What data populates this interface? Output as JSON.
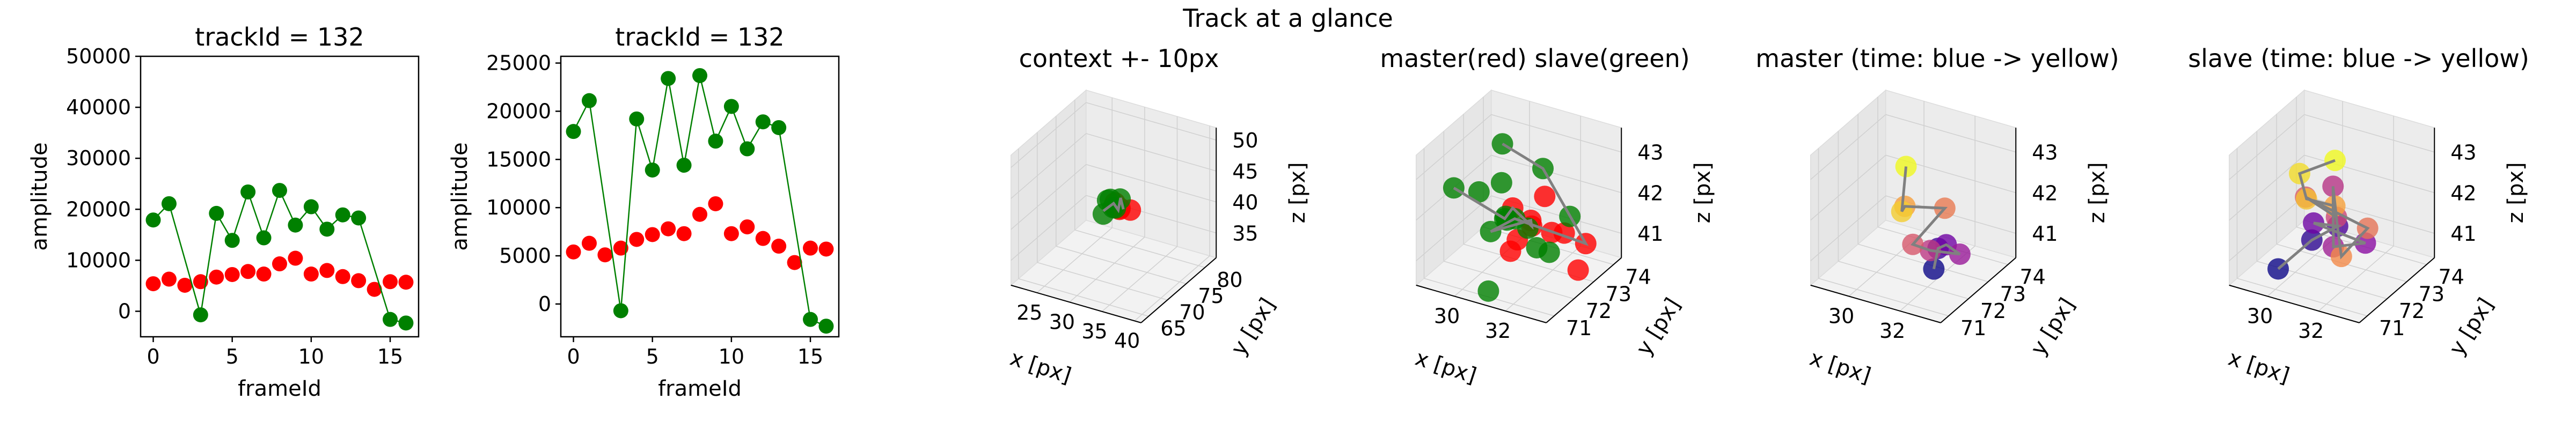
{
  "figure": {
    "suptitle": "Track at a glance"
  },
  "chart_data": [
    {
      "type": "scatter",
      "title": "trackId = 132",
      "xlabel": "frameId",
      "ylabel": "amplitude",
      "xlim": [
        -0.8,
        16.8
      ],
      "ylim": [
        -5000,
        50000
      ],
      "xticks": [
        0,
        5,
        10,
        15
      ],
      "yticks": [
        0,
        10000,
        20000,
        30000,
        40000,
        50000
      ],
      "grid": false,
      "series": [
        {
          "color": "#ff0000",
          "connected": false,
          "x": [
            0,
            1,
            2,
            3,
            4,
            5,
            6,
            7,
            8,
            9,
            10,
            11,
            12,
            13,
            14,
            15,
            16
          ],
          "y": [
            5400,
            6300,
            5100,
            5800,
            6700,
            7200,
            7800,
            7300,
            9300,
            10400,
            7300,
            8000,
            6800,
            6000,
            4300,
            5800,
            5700
          ]
        },
        {
          "color": "#008000",
          "connected": true,
          "x": [
            0,
            1,
            3,
            4,
            5,
            6,
            7,
            8,
            9,
            10,
            11,
            12,
            13,
            15,
            16
          ],
          "y": [
            17900,
            21100,
            -700,
            19200,
            13900,
            23400,
            14400,
            23700,
            16900,
            20500,
            16100,
            18900,
            18300,
            -1600,
            -2300
          ]
        }
      ]
    },
    {
      "type": "scatter",
      "title": "trackId = 132",
      "xlabel": "frameId",
      "ylabel": "amplitude",
      "xlim": [
        -0.8,
        16.8
      ],
      "ylim": [
        -3400,
        25700
      ],
      "xticks": [
        0,
        5,
        10,
        15
      ],
      "yticks": [
        0,
        5000,
        10000,
        15000,
        20000,
        25000
      ],
      "grid": false,
      "series": [
        {
          "color": "#ff0000",
          "connected": false,
          "x": [
            0,
            1,
            2,
            3,
            4,
            5,
            6,
            7,
            8,
            9,
            10,
            11,
            12,
            13,
            14,
            15,
            16
          ],
          "y": [
            5400,
            6300,
            5100,
            5800,
            6700,
            7200,
            7800,
            7300,
            9300,
            10400,
            7300,
            8000,
            6800,
            6000,
            4300,
            5800,
            5700
          ]
        },
        {
          "color": "#008000",
          "connected": true,
          "x": [
            0,
            1,
            3,
            4,
            5,
            6,
            7,
            8,
            9,
            10,
            11,
            12,
            13,
            15,
            16
          ],
          "y": [
            17900,
            21100,
            -700,
            19200,
            13900,
            23400,
            14400,
            23700,
            16900,
            20500,
            16100,
            18900,
            18300,
            -1600,
            -2300
          ]
        }
      ]
    },
    {
      "type": "scatter",
      "projection": "3d",
      "title": "context +- 10px",
      "xlabel": "x [px]",
      "ylabel": "y [px]",
      "zlabel": "z [px]",
      "xlim": [
        21,
        41
      ],
      "ylim": [
        63,
        83
      ],
      "zlim": [
        31,
        52
      ],
      "xticks": [
        25,
        30,
        35,
        40
      ],
      "yticks": [
        65,
        70,
        75,
        80
      ],
      "zticks": [
        35,
        40,
        45,
        50
      ],
      "series": [
        {
          "color": "#ff0000",
          "x": [
            32,
            32.5,
            33,
            31.5
          ],
          "y": [
            73,
            72,
            74,
            72.5
          ],
          "z": [
            41.5,
            42,
            41,
            42.5
          ]
        },
        {
          "color": "#008000",
          "x": [
            30,
            30.5,
            31,
            31.5,
            29.5,
            32
          ],
          "y": [
            72,
            73,
            73.5,
            72,
            74,
            73
          ],
          "z": [
            40.5,
            42.5,
            41,
            42,
            41.5,
            43
          ]
        },
        {
          "color": "#808080",
          "connected": true,
          "x": [
            30,
            31,
            32,
            31.5,
            32.5
          ],
          "y": [
            72,
            73,
            72.5,
            74,
            73
          ],
          "z": [
            41,
            42,
            41.5,
            42.5,
            41.5
          ]
        }
      ]
    },
    {
      "type": "scatter",
      "projection": "3d",
      "title": "master(red) slave(green)",
      "xlabel": "x [px]",
      "ylabel": "y [px]",
      "zlabel": "z [px]",
      "xlim": [
        28.5,
        33.6
      ],
      "ylim": [
        70.6,
        74.4
      ],
      "zlim": [
        40.4,
        43.6
      ],
      "xticks": [
        30,
        32
      ],
      "yticks": [
        71,
        72,
        73,
        74
      ],
      "zticks": [
        41,
        42,
        43
      ],
      "series": [
        {
          "color": "#ff0000",
          "x": [
            31.2,
            31.6,
            32.1,
            32.6,
            31.8,
            32.3,
            31.5,
            32.9,
            33.3,
            32.0
          ],
          "y": [
            72.0,
            72.4,
            71.8,
            72.8,
            73.2,
            72.2,
            71.5,
            73.5,
            72.6,
            71.2
          ],
          "z": [
            42.2,
            41.8,
            42.0,
            41.5,
            41.2,
            42.6,
            41.4,
            41.0,
            40.8,
            41.9
          ]
        },
        {
          "color": "#008000",
          "x": [
            29.2,
            29.8,
            30.5,
            31.0,
            30.2,
            31.6,
            30.8,
            31.3,
            32.4,
            29.6,
            30.4,
            31.9,
            31.1,
            30.1,
            32.2
          ],
          "y": [
            71.6,
            72.1,
            72.5,
            71.9,
            73.0,
            72.7,
            71.4,
            73.4,
            72.3,
            73.5,
            73.8,
            71.2,
            70.9,
            72.9,
            73.6
          ],
          "z": [
            42.5,
            42.3,
            41.6,
            42.0,
            41.3,
            41.0,
            41.8,
            42.6,
            41.2,
            41.9,
            40.8,
            42.4,
            40.6,
            43.2,
            41.5
          ]
        },
        {
          "color": "#808080",
          "connected": true,
          "x": [
            29.2,
            30.5,
            31.2,
            32.1,
            31.6,
            30.8,
            31.9,
            32.9,
            31.3,
            30.1
          ],
          "y": [
            71.6,
            72.5,
            72.0,
            71.8,
            72.4,
            71.4,
            71.2,
            73.5,
            73.4,
            72.9
          ],
          "z": [
            42.5,
            41.6,
            42.2,
            42.0,
            41.8,
            41.8,
            42.4,
            41.0,
            42.6,
            43.2
          ]
        }
      ]
    },
    {
      "type": "scatter",
      "projection": "3d",
      "title": "master (time: blue -> yellow)",
      "xlabel": "x [px]",
      "ylabel": "y [px]",
      "zlabel": "z [px]",
      "xlim": [
        28.5,
        33.6
      ],
      "ylim": [
        70.6,
        74.4
      ],
      "zlim": [
        40.4,
        43.6
      ],
      "xticks": [
        30,
        32
      ],
      "yticks": [
        71,
        72,
        73,
        74
      ],
      "zticks": [
        41,
        42,
        43
      ],
      "colormap": "plasma",
      "series": [
        {
          "color_by": "time",
          "x": [
            32.4,
            32.1,
            31.8,
            32.8,
            32.5,
            31.5,
            31.9,
            30.8,
            31.3,
            31.0
          ],
          "y": [
            71.8,
            72.4,
            73.2,
            72.6,
            71.5,
            71.9,
            73.0,
            72.4,
            71.6,
            72.2
          ],
          "z": [
            41.0,
            41.2,
            40.9,
            41.1,
            41.6,
            41.4,
            41.9,
            42.0,
            42.3,
            43.1
          ]
        },
        {
          "color": "#808080",
          "connected": true,
          "x": [
            32.4,
            32.1,
            31.8,
            32.8,
            32.5,
            31.5,
            31.9,
            30.8,
            31.3,
            31.0
          ],
          "y": [
            71.8,
            72.4,
            73.2,
            72.6,
            71.5,
            71.9,
            73.0,
            72.4,
            71.6,
            72.2
          ],
          "z": [
            41.0,
            41.2,
            40.9,
            41.1,
            41.6,
            41.4,
            41.9,
            42.0,
            42.3,
            43.1
          ]
        }
      ]
    },
    {
      "type": "scatter",
      "projection": "3d",
      "title": "slave (time: blue -> yellow)",
      "xlabel": "x [px]",
      "ylabel": "y [px]",
      "zlabel": "z [px]",
      "xlim": [
        28.5,
        33.6
      ],
      "ylim": [
        70.6,
        74.4
      ],
      "zlim": [
        40.4,
        43.6
      ],
      "xticks": [
        30,
        32
      ],
      "yticks": [
        71,
        72,
        73,
        74
      ],
      "zticks": [
        41,
        42,
        43
      ],
      "colormap": "plasma",
      "series": [
        {
          "color_by": "time",
          "x": [
            29.8,
            30.5,
            31.2,
            30.8,
            31.9,
            31.5,
            30.4,
            31.0,
            30.1,
            31.6,
            32.2,
            31.4,
            30.6,
            29.4,
            31.1
          ],
          "y": [
            71.4,
            72.2,
            72.6,
            71.9,
            73.1,
            72.0,
            73.4,
            72.8,
            72.4,
            73.6,
            71.5,
            72.2,
            71.8,
            73.0,
            72.6
          ],
          "z": [
            40.7,
            41.2,
            41.5,
            41.8,
            41.0,
            41.3,
            42.0,
            41.6,
            42.1,
            41.1,
            41.4,
            42.2,
            42.4,
            42.3,
            43.1
          ]
        },
        {
          "color": "#808080",
          "connected": true,
          "x": [
            29.8,
            30.5,
            31.2,
            30.8,
            31.9,
            31.5,
            30.4,
            31.0,
            30.1,
            31.6,
            32.2,
            31.4,
            30.6,
            29.4,
            31.1
          ],
          "y": [
            71.4,
            72.2,
            72.6,
            71.9,
            73.1,
            72.0,
            73.4,
            72.8,
            72.4,
            73.6,
            71.5,
            72.2,
            71.8,
            73.0,
            72.6
          ],
          "z": [
            40.7,
            41.2,
            41.5,
            41.8,
            41.0,
            41.3,
            42.0,
            41.6,
            42.1,
            41.1,
            41.4,
            42.2,
            42.4,
            42.3,
            43.1
          ]
        }
      ]
    }
  ]
}
